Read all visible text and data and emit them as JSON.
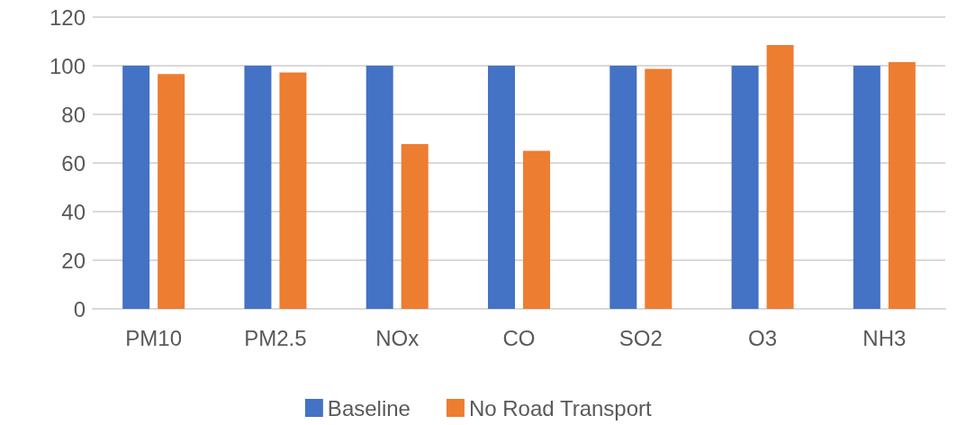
{
  "chart_data": {
    "type": "bar",
    "categories": [
      "PM10",
      "PM2.5",
      "NOx",
      "CO",
      "SO2",
      "O3",
      "NH3"
    ],
    "series": [
      {
        "name": "Baseline",
        "color": "#4472c4",
        "values": [
          100,
          100,
          100,
          100,
          100,
          100,
          100
        ]
      },
      {
        "name": "No Road Transport",
        "color": "#ed7d31",
        "values": [
          96.6,
          97.2,
          67.8,
          65,
          98.7,
          108.5,
          101.5
        ]
      }
    ],
    "ylim": [
      0,
      120
    ],
    "yticks": [
      0,
      20,
      40,
      60,
      80,
      100,
      120
    ],
    "grid": "y",
    "legend": "bottom"
  }
}
